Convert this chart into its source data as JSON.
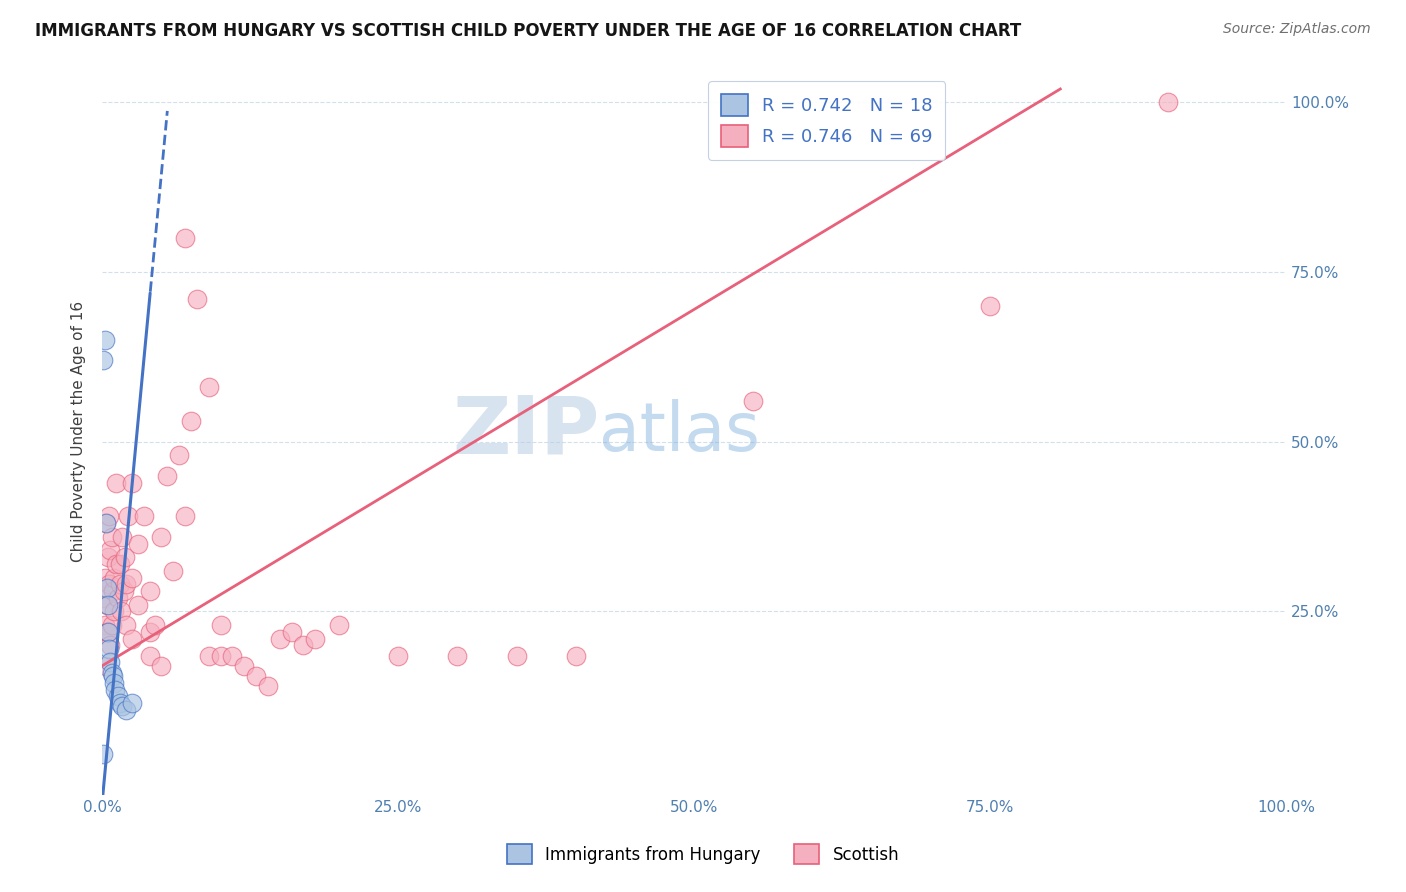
{
  "title": "IMMIGRANTS FROM HUNGARY VS SCOTTISH CHILD POVERTY UNDER THE AGE OF 16 CORRELATION CHART",
  "source": "Source: ZipAtlas.com",
  "xlabel": "",
  "ylabel": "Child Poverty Under the Age of 16",
  "blue_label": "Immigrants from Hungary",
  "pink_label": "Scottish",
  "blue_R": 0.742,
  "blue_N": 18,
  "pink_R": 0.746,
  "pink_N": 69,
  "blue_color": "#aac4e2",
  "blue_line_color": "#4472c4",
  "pink_color": "#f5b0c0",
  "pink_line_color": "#e8607a",
  "watermark_ZIP": "ZIP",
  "watermark_atlas": "atlas",
  "blue_points": [
    [
      0.002,
      0.65
    ],
    [
      0.003,
      0.38
    ],
    [
      0.004,
      0.285
    ],
    [
      0.005,
      0.26
    ],
    [
      0.005,
      0.22
    ],
    [
      0.006,
      0.195
    ],
    [
      0.007,
      0.175
    ],
    [
      0.008,
      0.16
    ],
    [
      0.009,
      0.155
    ],
    [
      0.01,
      0.145
    ],
    [
      0.011,
      0.135
    ],
    [
      0.013,
      0.125
    ],
    [
      0.015,
      0.115
    ],
    [
      0.017,
      0.11
    ],
    [
      0.02,
      0.105
    ],
    [
      0.025,
      0.115
    ],
    [
      0.001,
      0.62
    ],
    [
      0.001,
      0.04
    ]
  ],
  "pink_points": [
    [
      0.001,
      0.27
    ],
    [
      0.002,
      0.3
    ],
    [
      0.002,
      0.23
    ],
    [
      0.003,
      0.38
    ],
    [
      0.003,
      0.17
    ],
    [
      0.004,
      0.22
    ],
    [
      0.004,
      0.26
    ],
    [
      0.005,
      0.33
    ],
    [
      0.005,
      0.22
    ],
    [
      0.006,
      0.29
    ],
    [
      0.006,
      0.39
    ],
    [
      0.007,
      0.2
    ],
    [
      0.007,
      0.34
    ],
    [
      0.008,
      0.23
    ],
    [
      0.008,
      0.36
    ],
    [
      0.009,
      0.28
    ],
    [
      0.01,
      0.3
    ],
    [
      0.01,
      0.25
    ],
    [
      0.012,
      0.32
    ],
    [
      0.012,
      0.44
    ],
    [
      0.013,
      0.27
    ],
    [
      0.015,
      0.29
    ],
    [
      0.015,
      0.32
    ],
    [
      0.016,
      0.25
    ],
    [
      0.017,
      0.36
    ],
    [
      0.018,
      0.28
    ],
    [
      0.019,
      0.33
    ],
    [
      0.02,
      0.29
    ],
    [
      0.02,
      0.23
    ],
    [
      0.022,
      0.39
    ],
    [
      0.025,
      0.44
    ],
    [
      0.025,
      0.3
    ],
    [
      0.025,
      0.21
    ],
    [
      0.03,
      0.35
    ],
    [
      0.03,
      0.26
    ],
    [
      0.035,
      0.39
    ],
    [
      0.04,
      0.28
    ],
    [
      0.04,
      0.22
    ],
    [
      0.04,
      0.185
    ],
    [
      0.045,
      0.23
    ],
    [
      0.05,
      0.36
    ],
    [
      0.05,
      0.17
    ],
    [
      0.055,
      0.45
    ],
    [
      0.06,
      0.31
    ],
    [
      0.065,
      0.48
    ],
    [
      0.07,
      0.39
    ],
    [
      0.07,
      0.8
    ],
    [
      0.075,
      0.53
    ],
    [
      0.08,
      0.71
    ],
    [
      0.09,
      0.58
    ],
    [
      0.09,
      0.185
    ],
    [
      0.1,
      0.185
    ],
    [
      0.1,
      0.23
    ],
    [
      0.11,
      0.185
    ],
    [
      0.12,
      0.17
    ],
    [
      0.13,
      0.155
    ],
    [
      0.14,
      0.14
    ],
    [
      0.15,
      0.21
    ],
    [
      0.16,
      0.22
    ],
    [
      0.17,
      0.2
    ],
    [
      0.18,
      0.21
    ],
    [
      0.2,
      0.23
    ],
    [
      0.25,
      0.185
    ],
    [
      0.3,
      0.185
    ],
    [
      0.35,
      0.185
    ],
    [
      0.4,
      0.185
    ],
    [
      0.55,
      0.56
    ],
    [
      0.75,
      0.7
    ],
    [
      0.9,
      1.0
    ]
  ],
  "blue_slope": 18.5,
  "blue_intercept": -0.03,
  "pink_slope": 1.05,
  "pink_intercept": 0.17,
  "xlim": [
    0,
    1.0
  ],
  "ylim": [
    0,
    1.0
  ],
  "xticks": [
    0.0,
    0.25,
    0.5,
    0.75,
    1.0
  ],
  "xtick_labels": [
    "0.0%",
    "25.0%",
    "50.0%",
    "75.0%",
    "100.0%"
  ],
  "yticks": [
    0.25,
    0.5,
    0.75,
    1.0
  ],
  "right_ytick_labels": [
    "25.0%",
    "50.0%",
    "75.0%",
    "100.0%"
  ]
}
